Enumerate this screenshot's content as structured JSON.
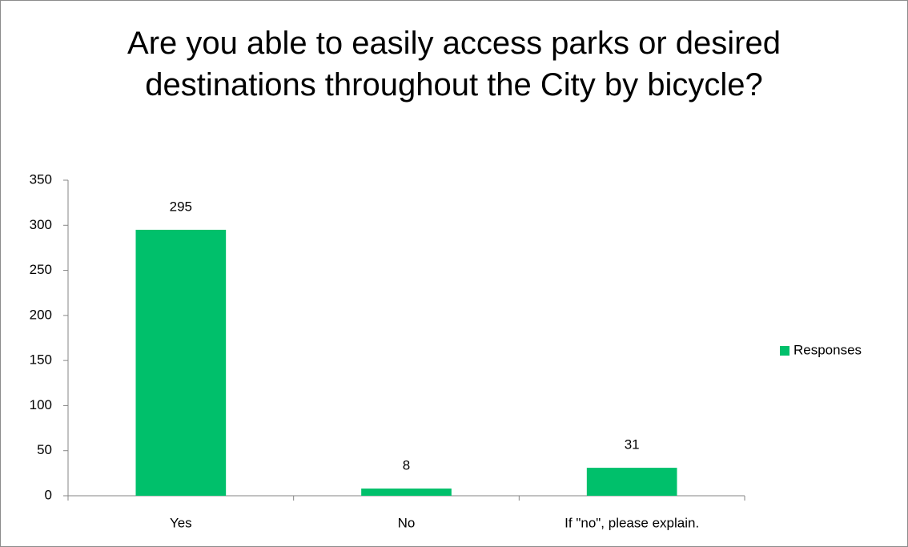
{
  "chart_data": {
    "type": "bar",
    "title": "Are you able to easily access parks or desired destinations throughout the City by bicycle?",
    "categories": [
      "Yes",
      "No",
      "If \"no\", please explain."
    ],
    "series": [
      {
        "name": "Responses",
        "color": "#00c06b",
        "values": [
          295,
          8,
          31
        ]
      }
    ],
    "ylim": [
      0,
      350
    ],
    "yticks": [
      0,
      50,
      100,
      150,
      200,
      250,
      300,
      350
    ],
    "grid": false,
    "legend": "right"
  }
}
